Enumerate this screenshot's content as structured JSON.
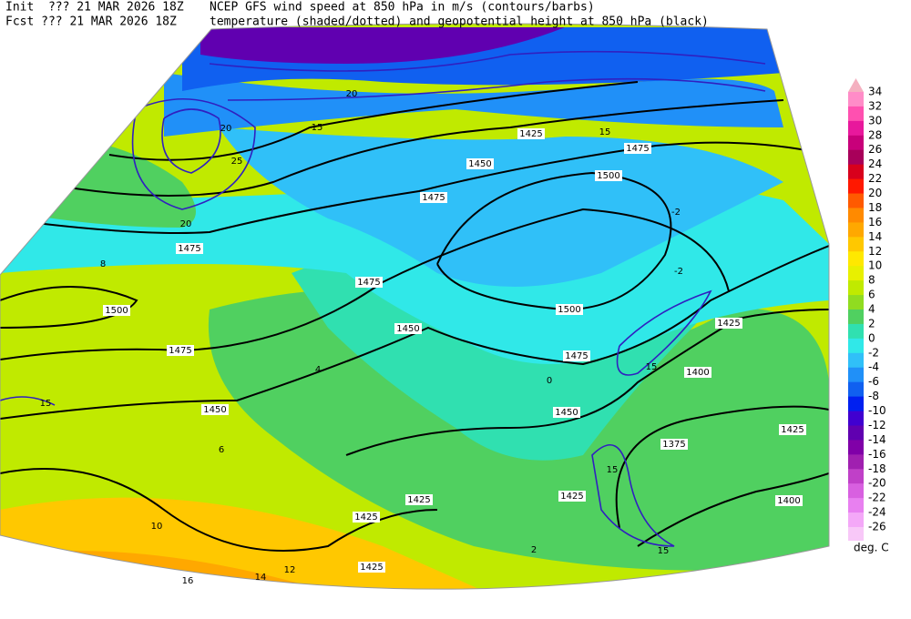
{
  "header": {
    "init_label": "Init  ??? 21 MAR 2026 18Z",
    "fcst_label": "Fcst ??? 21 MAR 2026 18Z",
    "title_line_1": "NCEP GFS wind speed at 850 hPa in m/s (contours/barbs)",
    "title_line_2": "temperature (shaded/dotted) and geopotential height at 850 hPa (black)"
  },
  "colorbar": {
    "levels": [
      34,
      32,
      30,
      28,
      26,
      24,
      22,
      20,
      18,
      16,
      14,
      12,
      10,
      8,
      6,
      4,
      2,
      0,
      -2,
      -4,
      -6,
      -8,
      -10,
      -12,
      -14,
      -16,
      -18,
      -20,
      -22,
      -24,
      -26
    ],
    "colors": [
      "#f4b0c0",
      "#ff8cc8",
      "#ff50b0",
      "#e8189c",
      "#c8007a",
      "#a8005a",
      "#d8001c",
      "#ff1800",
      "#ff5a00",
      "#ff8a00",
      "#ffa800",
      "#ffc800",
      "#ffe800",
      "#e8f000",
      "#c0ea00",
      "#90dc20",
      "#50d060",
      "#30e0b0",
      "#30e8e8",
      "#30c0f8",
      "#2090f8",
      "#1060f0",
      "#0020f0",
      "#4000d0",
      "#6000b0",
      "#8000a8",
      "#a020b0",
      "#c040c8",
      "#d860e0",
      "#e880f0",
      "#f4a8f8",
      "#f8c8f8"
    ],
    "unit": "deg. C"
  },
  "map_labels": [
    "1500",
    "1475",
    "1450",
    "1450",
    "1475",
    "1500",
    "1500",
    "1475",
    "1475",
    "1450",
    "1425",
    "1475",
    "1425",
    "1425",
    "1425",
    "1475",
    "1450",
    "1425",
    "1400",
    "1425",
    "1375",
    "1400",
    "1425",
    "20",
    "15",
    "20",
    "25",
    "20",
    "15",
    "15",
    "15",
    "15",
    "15",
    "-2",
    "-2",
    "0",
    "2",
    "4",
    "6",
    "8",
    "10",
    "12",
    "14",
    "16"
  ]
}
